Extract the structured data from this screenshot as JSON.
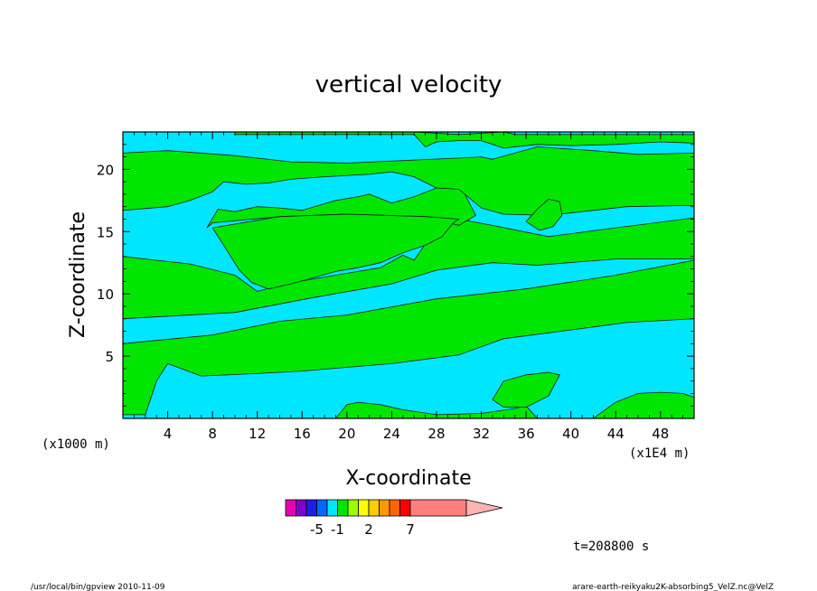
{
  "chart_data": {
    "type": "heatmap",
    "title": "vertical velocity",
    "xlabel": "X-coordinate",
    "ylabel": "Z-coordinate",
    "x_unit_left": "(x1000 m)",
    "x_unit_right": "(x1E4 m)",
    "xlim": [
      0,
      51
    ],
    "ylim": [
      0,
      23
    ],
    "x_ticks": [
      4,
      8,
      12,
      16,
      20,
      24,
      28,
      32,
      36,
      40,
      44,
      48
    ],
    "y_ticks": [
      5,
      10,
      15,
      20
    ],
    "time_label": "t=208800 s",
    "footer_left": "/usr/local/bin/gpview  2010-11-09",
    "footer_right": "arare-earth-reikyaku2K-absorbing5_VelZ.nc@VelZ",
    "colorbar": {
      "colors": [
        "#e600b4",
        "#7f00c8",
        "#1e1ee6",
        "#0066ff",
        "#00e6ff",
        "#00e600",
        "#99ff00",
        "#ffff00",
        "#ffcc00",
        "#ff9900",
        "#ff6600",
        "#ff0000",
        "#ff7f7f",
        "#ffb3b3"
      ],
      "labels": [
        {
          "text": "-5",
          "after_segment": 2
        },
        {
          "text": "-1",
          "after_segment": 4
        },
        {
          "text": "2",
          "after_segment": 7
        },
        {
          "text": "7",
          "after_segment": 11
        }
      ]
    },
    "fill_colors": {
      "negative": "#00e6ff",
      "positive": "#00e600"
    },
    "regions": [
      {
        "sign": "positive",
        "points": [
          [
            0,
            0.3
          ],
          [
            0,
            6
          ],
          [
            8,
            6.7
          ],
          [
            14,
            7.8
          ],
          [
            20,
            8.3
          ],
          [
            28,
            9.6
          ],
          [
            36,
            10.4
          ],
          [
            44,
            11.5
          ],
          [
            51,
            12.7
          ],
          [
            51,
            8
          ],
          [
            45,
            7.7
          ],
          [
            40,
            7.1
          ],
          [
            34,
            6.4
          ],
          [
            30,
            5.1
          ],
          [
            24,
            4.4
          ],
          [
            16,
            3.8
          ],
          [
            12,
            3.6
          ],
          [
            7,
            3.4
          ],
          [
            4,
            4.4
          ],
          [
            3,
            3
          ],
          [
            2,
            0.3
          ]
        ]
      },
      {
        "sign": "positive",
        "points": [
          [
            0,
            13
          ],
          [
            0,
            8
          ],
          [
            10,
            8.5
          ],
          [
            17,
            9.7
          ],
          [
            24,
            10.8
          ],
          [
            28,
            11.9
          ],
          [
            33,
            12.5
          ],
          [
            37,
            12.3
          ],
          [
            44,
            12.8
          ],
          [
            51,
            12.8
          ],
          [
            51,
            16.1
          ],
          [
            44,
            15.3
          ],
          [
            38,
            14.6
          ],
          [
            33,
            15.5
          ],
          [
            30,
            16
          ],
          [
            28,
            15.3
          ],
          [
            26,
            12.7
          ],
          [
            25,
            13.1
          ],
          [
            23,
            12.1
          ],
          [
            15,
            10.9
          ],
          [
            12,
            10.2
          ],
          [
            10,
            11.5
          ],
          [
            6,
            12.4
          ],
          [
            3,
            12.7
          ]
        ]
      },
      {
        "sign": "positive",
        "points": [
          [
            7.5,
            15.3
          ],
          [
            8,
            15.7
          ],
          [
            14,
            16.2
          ],
          [
            20,
            16.4
          ],
          [
            27,
            16.2
          ],
          [
            30,
            15.5
          ],
          [
            31.5,
            16.3
          ],
          [
            30.3,
            18.4
          ],
          [
            28,
            18.5
          ],
          [
            26,
            17.8
          ],
          [
            24,
            17.3
          ],
          [
            22,
            18
          ],
          [
            21,
            17.8
          ],
          [
            19,
            17.5
          ],
          [
            16,
            16.7
          ],
          [
            14,
            16.9
          ],
          [
            12,
            17
          ],
          [
            10,
            16.6
          ],
          [
            8.5,
            16.8
          ]
        ]
      },
      {
        "sign": "positive",
        "points": [
          [
            8,
            15.3
          ],
          [
            9,
            13.9
          ],
          [
            10.4,
            11.9
          ],
          [
            11.5,
            10.9
          ],
          [
            13,
            10.4
          ],
          [
            15,
            10.8
          ],
          [
            17,
            11.3
          ],
          [
            19,
            11.8
          ],
          [
            21,
            12.1
          ],
          [
            23,
            12.5
          ],
          [
            25,
            13.3
          ],
          [
            27,
            13.9
          ],
          [
            28.5,
            14.6
          ],
          [
            29.5,
            15.7
          ],
          [
            30,
            16
          ],
          [
            27,
            16.2
          ],
          [
            20,
            16.4
          ],
          [
            14,
            16.2
          ]
        ]
      },
      {
        "sign": "positive",
        "points": [
          [
            0,
            16.7
          ],
          [
            0,
            21.3
          ],
          [
            4,
            21.5
          ],
          [
            10,
            21.1
          ],
          [
            15,
            20.6
          ],
          [
            20,
            20.5
          ],
          [
            25,
            20.7
          ],
          [
            30,
            20.9
          ],
          [
            32,
            21
          ],
          [
            33,
            20.8
          ],
          [
            35,
            21.3
          ],
          [
            37,
            21.8
          ],
          [
            42,
            21.5
          ],
          [
            46,
            21.2
          ],
          [
            51,
            21.3
          ],
          [
            51,
            17.1
          ],
          [
            45,
            17
          ],
          [
            38,
            16.3
          ],
          [
            34,
            16.4
          ],
          [
            32,
            16.9
          ],
          [
            30,
            18.4
          ],
          [
            28,
            18.5
          ],
          [
            26,
            19.4
          ],
          [
            24,
            19.8
          ],
          [
            22,
            19.6
          ],
          [
            18,
            19.4
          ],
          [
            15,
            19.2
          ],
          [
            13,
            18.9
          ],
          [
            11,
            18.8
          ],
          [
            9,
            19
          ],
          [
            8,
            18.2
          ],
          [
            6,
            17.5
          ],
          [
            4,
            17
          ]
        ]
      },
      {
        "sign": "positive",
        "points": [
          [
            10,
            22.8
          ],
          [
            26,
            22.8
          ],
          [
            27,
            21.8
          ],
          [
            28,
            22.2
          ],
          [
            30,
            22.3
          ],
          [
            32,
            22.3
          ],
          [
            34,
            21.7
          ],
          [
            37,
            22
          ],
          [
            40,
            21.9
          ],
          [
            44,
            22
          ],
          [
            48,
            22.2
          ],
          [
            51,
            22.1
          ],
          [
            51,
            22.8
          ],
          [
            35,
            22.8
          ],
          [
            34,
            23
          ],
          [
            30,
            22.8
          ],
          [
            26,
            23
          ],
          [
            10,
            23
          ]
        ]
      },
      {
        "sign": "positive",
        "points": [
          [
            36,
            15.8
          ],
          [
            37,
            16.8
          ],
          [
            38,
            17.6
          ],
          [
            39,
            17.4
          ],
          [
            39.2,
            16.3
          ],
          [
            38.4,
            15.4
          ],
          [
            37.2,
            15.1
          ]
        ]
      },
      {
        "sign": "positive",
        "points": [
          [
            42,
            0
          ],
          [
            44,
            1.3
          ],
          [
            46,
            2
          ],
          [
            48,
            2.1
          ],
          [
            50,
            2
          ],
          [
            51,
            1.7
          ],
          [
            51,
            0
          ]
        ]
      },
      {
        "sign": "positive",
        "points": [
          [
            19,
            0
          ],
          [
            20,
            1.1
          ],
          [
            21,
            1.3
          ],
          [
            23,
            1.1
          ],
          [
            25,
            0.7
          ],
          [
            28,
            0.3
          ],
          [
            32,
            0.4
          ],
          [
            35,
            0.8
          ],
          [
            36,
            1
          ],
          [
            37,
            0
          ]
        ]
      },
      {
        "sign": "positive",
        "points": [
          [
            33,
            1.5
          ],
          [
            34,
            3
          ],
          [
            36,
            3.5
          ],
          [
            38,
            3.7
          ],
          [
            39,
            3.5
          ],
          [
            38,
            1.8
          ],
          [
            36,
            0.9
          ],
          [
            34,
            0.9
          ]
        ]
      }
    ]
  }
}
